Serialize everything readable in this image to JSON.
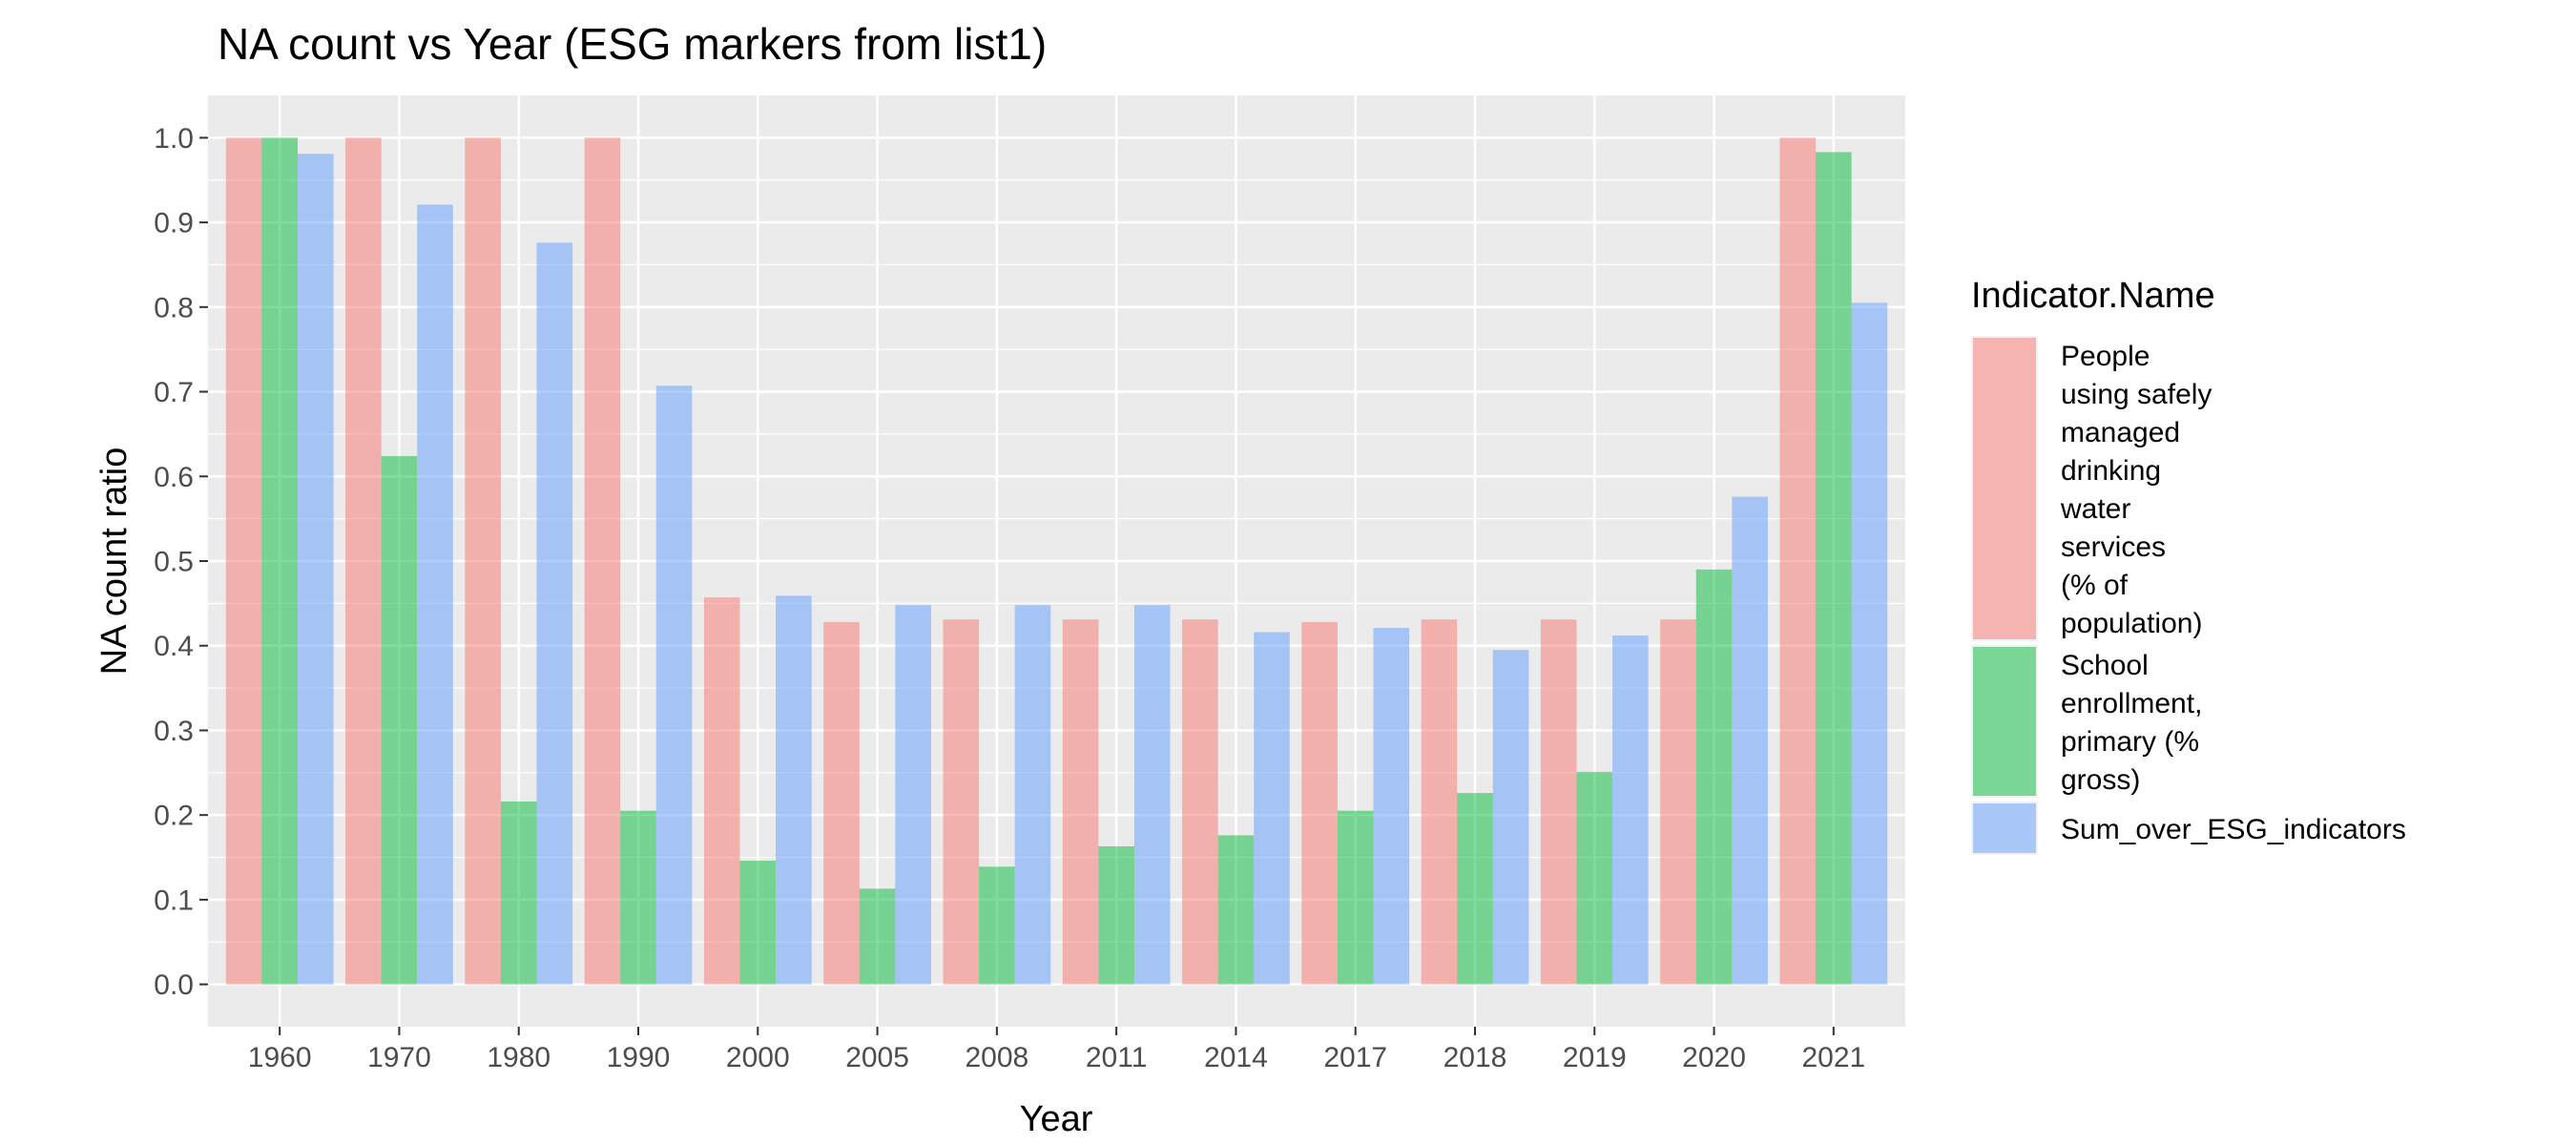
{
  "chart_data": {
    "type": "bar",
    "title": "NA count vs Year (ESG markers from list1)",
    "xlabel": "Year",
    "ylabel": "NA count ratio",
    "ylim": [
      -0.05,
      1.05
    ],
    "yticks": [
      "0.0",
      "0.1",
      "0.2",
      "0.3",
      "0.4",
      "0.5",
      "0.6",
      "0.7",
      "0.8",
      "0.9",
      "1.0"
    ],
    "grid": true,
    "legend_position": "right",
    "legend_title": "Indicator.Name",
    "categories": [
      "1960",
      "1970",
      "1980",
      "1990",
      "2000",
      "2005",
      "2008",
      "2011",
      "2014",
      "2017",
      "2018",
      "2019",
      "2020",
      "2021"
    ],
    "series": [
      {
        "name": "People using safely managed drinking water services (% of population)",
        "legend_lines": [
          "People",
          "using safely",
          "managed",
          "drinking",
          "water",
          "services",
          "(% of",
          "population)"
        ],
        "color": "#F8766D",
        "values": [
          1.0,
          1.0,
          1.0,
          1.0,
          0.457,
          0.428,
          0.431,
          0.431,
          0.431,
          0.428,
          0.431,
          0.431,
          0.431,
          1.0
        ]
      },
      {
        "name": "School enrollment, primary (% gross)",
        "legend_lines": [
          "School",
          "enrollment,",
          "primary (%",
          "gross)"
        ],
        "color": "#00BA38",
        "values": [
          1.0,
          0.624,
          0.216,
          0.205,
          0.146,
          0.113,
          0.139,
          0.163,
          0.176,
          0.205,
          0.226,
          0.251,
          0.49,
          0.983
        ]
      },
      {
        "name": "Sum_over_ESG_indicators",
        "legend_lines": [
          "Sum_over_ESG_indicators"
        ],
        "color": "#619CFF",
        "values": [
          0.981,
          0.921,
          0.876,
          0.707,
          0.459,
          0.448,
          0.448,
          0.448,
          0.416,
          0.421,
          0.395,
          0.412,
          0.576,
          0.805
        ]
      }
    ]
  }
}
